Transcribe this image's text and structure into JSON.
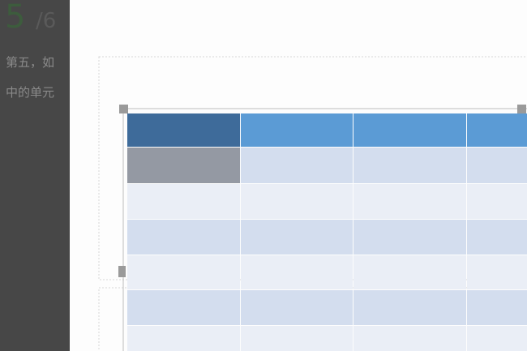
{
  "step": {
    "number": "5",
    "total": "/6"
  },
  "instruction": {
    "lines": [
      "第五，如",
      "中的单元"
    ]
  }
}
